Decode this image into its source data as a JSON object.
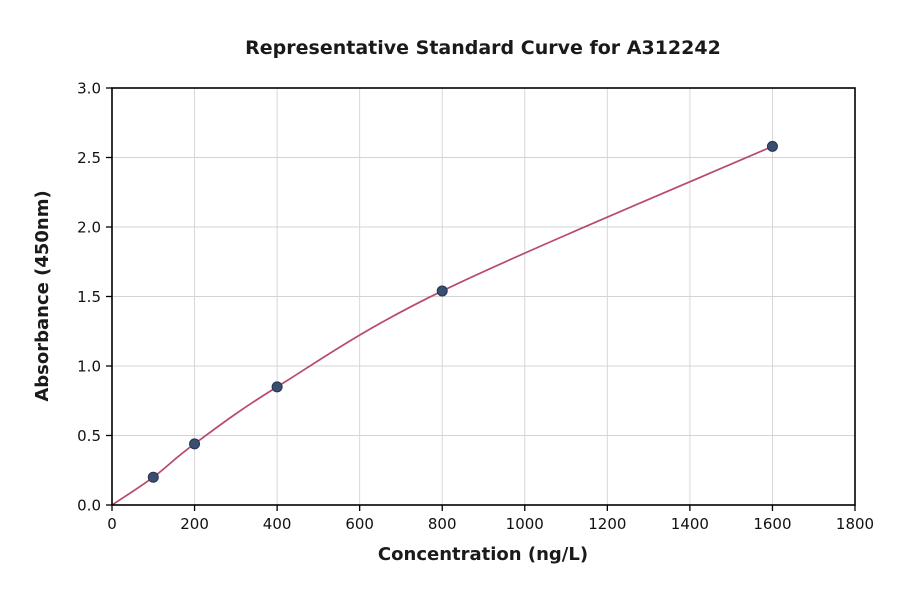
{
  "chart_data": {
    "type": "scatter",
    "title": "Representative Standard Curve for A312242",
    "xlabel": "Concentration (ng/L)",
    "ylabel": "Absorbance (450nm)",
    "xlim": [
      0,
      1800
    ],
    "ylim": [
      0,
      3.0
    ],
    "x_ticks": [
      0,
      200,
      400,
      600,
      800,
      1000,
      1200,
      1400,
      1600,
      1800
    ],
    "y_ticks": [
      0.0,
      0.5,
      1.0,
      1.5,
      2.0,
      2.5,
      3.0
    ],
    "grid": true,
    "legend": "none",
    "series": [
      {
        "name": "standard-points",
        "kind": "scatter",
        "x": [
          100,
          200,
          400,
          800,
          1600
        ],
        "y": [
          0.2,
          0.44,
          0.85,
          1.54,
          2.58
        ]
      },
      {
        "name": "fitted-curve",
        "kind": "line",
        "x": [
          0,
          100,
          200,
          400,
          800,
          1600
        ],
        "y": [
          0.0,
          0.2,
          0.44,
          0.85,
          1.54,
          2.58
        ]
      }
    ],
    "colors": {
      "line": "#b84a6e",
      "marker_fill": "#3a4e6f",
      "marker_edge": "#253552",
      "grid": "#d4d4d4",
      "axis": "#000000",
      "background": "#ffffff"
    }
  }
}
